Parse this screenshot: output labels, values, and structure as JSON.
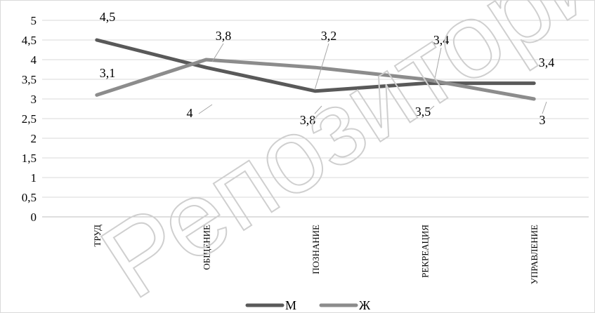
{
  "watermark": "Репозиторий",
  "chart_data": {
    "type": "line",
    "title": "",
    "xlabel": "",
    "ylabel": "",
    "categories": [
      "ТРУД",
      "ОБЩЕНИЕ",
      "ПОЗНАНИЕ",
      "РЕКРЕАЦИЯ",
      "УПРАВЛЕНИЕ"
    ],
    "ylim": [
      0,
      5
    ],
    "yticks": [
      "0",
      "0,5",
      "1",
      "1,5",
      "2",
      "2,5",
      "3",
      "3,5",
      "4",
      "4,5",
      "5"
    ],
    "grid": true,
    "legend": "bottom",
    "series": [
      {
        "name": "М",
        "color": "#595959",
        "values": [
          4.5,
          3.8,
          3.2,
          3.4,
          3.4
        ],
        "labels": [
          "4,5",
          "3,8",
          "3,2",
          "3,4",
          "3,4"
        ]
      },
      {
        "name": "Ж",
        "color": "#8c8c8c",
        "values": [
          3.1,
          4.0,
          3.8,
          3.5,
          3.0
        ],
        "labels": [
          "3,1",
          "4",
          "3,8",
          "3,5",
          "3"
        ]
      }
    ]
  }
}
